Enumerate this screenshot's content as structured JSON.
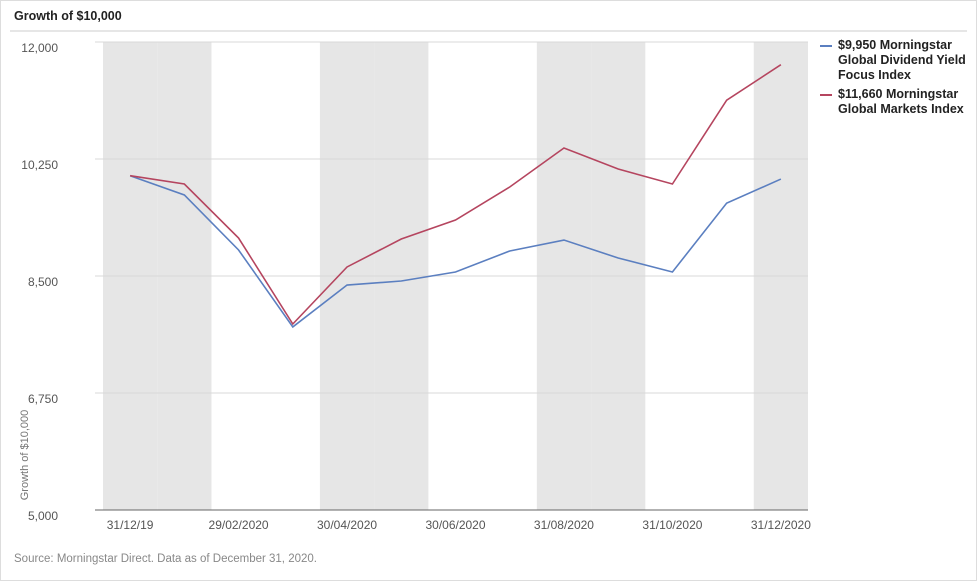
{
  "chart_data": {
    "type": "line",
    "title": "Growth of $10,000",
    "y_label": "Growth of $10,000",
    "source": "Source: Morningstar Direct. Data as of December 31, 2020.",
    "categories": [
      "31/12/19",
      null,
      "29/02/2020",
      null,
      "30/04/2020",
      null,
      "30/06/2020",
      null,
      "31/08/2020",
      null,
      "31/10/2020",
      null,
      "31/12/2020"
    ],
    "series": [
      {
        "name": "$9,950 Morningstar Global Dividend Yield Focus Index",
        "color": "#5b7fc0",
        "values": [
          10000,
          9712,
          8889,
          7738,
          8365,
          8425,
          8560,
          8874,
          9038,
          8769,
          8560,
          9590,
          9950
        ]
      },
      {
        "name": "$11,660 Morningstar Global Markets Index",
        "color": "#b5455f",
        "values": [
          10000,
          9876,
          9068,
          7782,
          8635,
          9053,
          9337,
          9831,
          10414,
          10100,
          9876,
          11130,
          11660
        ]
      }
    ],
    "ylim": [
      5000,
      12000
    ],
    "yticks": [
      {
        "value": 5000,
        "label": "5,000"
      },
      {
        "value": 6750,
        "label": "6,750"
      },
      {
        "value": 8500,
        "label": "8,500"
      },
      {
        "value": 10250,
        "label": "10,250"
      },
      {
        "value": 12000,
        "label": "12,000"
      }
    ],
    "grid": true
  }
}
